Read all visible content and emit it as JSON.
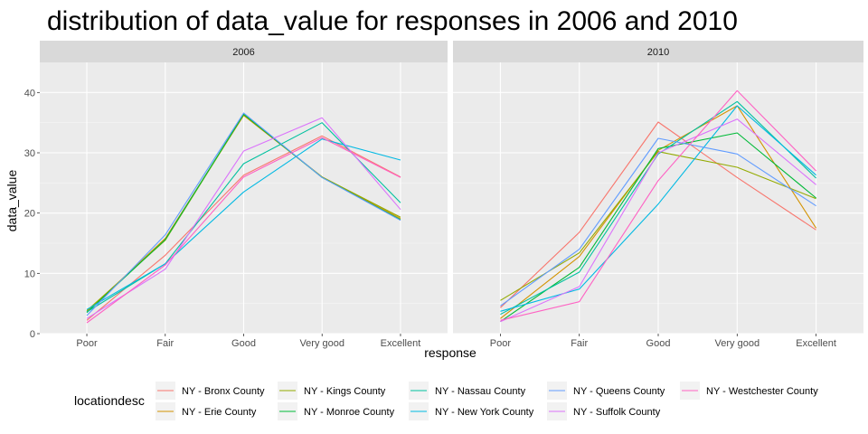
{
  "chart_data": {
    "type": "line",
    "title": "distribution of data_value for responses in 2006 and 2010",
    "xlabel": "response",
    "ylabel": "data_value",
    "categories": [
      "Poor",
      "Fair",
      "Good",
      "Very good",
      "Excellent"
    ],
    "ylim": [
      0,
      45
    ],
    "yticks": [
      0,
      10,
      20,
      30,
      40
    ],
    "grid": true,
    "legend": {
      "title": "locationdesc",
      "placement": "bottom"
    },
    "panels": [
      {
        "label": "2006",
        "series": [
          {
            "name": "NY - Bronx County",
            "color": "#F8766D",
            "values": [
              2.2,
              13.0,
              26.3,
              32.8,
              26.0
            ]
          },
          {
            "name": "NY - Erie County",
            "color": "#D39200",
            "values": [
              3.6,
              15.8,
              36.2,
              26.0,
              19.1
            ]
          },
          {
            "name": "NY - Kings County",
            "color": "#93AA00",
            "values": [
              3.8,
              15.5,
              36.3,
              26.0,
              19.3
            ]
          },
          {
            "name": "NY - Monroe County",
            "color": "#00BA38",
            "values": [
              3.5,
              15.6,
              36.4,
              25.9,
              18.9
            ]
          },
          {
            "name": "NY - Nassau County",
            "color": "#00C19F",
            "values": [
              3.6,
              11.6,
              28.2,
              35.0,
              21.7
            ]
          },
          {
            "name": "NY - New York County",
            "color": "#00B9E3",
            "values": [
              4.0,
              11.6,
              23.5,
              32.3,
              28.8
            ]
          },
          {
            "name": "NY - Queens County",
            "color": "#619CFF",
            "values": [
              3.0,
              16.4,
              36.6,
              25.9,
              18.8
            ]
          },
          {
            "name": "NY - Suffolk County",
            "color": "#DB72FB",
            "values": [
              2.5,
              10.7,
              30.3,
              35.8,
              20.6
            ]
          },
          {
            "name": "NY - Westchester County",
            "color": "#FF61C3",
            "values": [
              1.8,
              11.4,
              26.0,
              32.5,
              25.9
            ]
          }
        ]
      },
      {
        "label": "2010",
        "series": [
          {
            "name": "NY - Bronx County",
            "color": "#F8766D",
            "values": [
              4.3,
              16.8,
              35.1,
              25.9,
              17.2
            ]
          },
          {
            "name": "NY - Erie County",
            "color": "#D39200",
            "values": [
              2.5,
              12.8,
              30.4,
              37.8,
              17.5
            ]
          },
          {
            "name": "NY - Kings County",
            "color": "#93AA00",
            "values": [
              5.5,
              13.4,
              30.2,
              27.6,
              22.4
            ]
          },
          {
            "name": "NY - Monroe County",
            "color": "#00BA38",
            "values": [
              2.0,
              11.0,
              30.7,
              33.3,
              22.5
            ]
          },
          {
            "name": "NY - Nassau County",
            "color": "#00C19F",
            "values": [
              3.2,
              10.2,
              29.8,
              38.5,
              25.8
            ]
          },
          {
            "name": "NY - New York County",
            "color": "#00B9E3",
            "values": [
              3.7,
              7.4,
              21.5,
              37.8,
              26.3
            ]
          },
          {
            "name": "NY - Queens County",
            "color": "#619CFF",
            "values": [
              4.6,
              14.0,
              32.4,
              29.8,
              21.2
            ]
          },
          {
            "name": "NY - Suffolk County",
            "color": "#DB72FB",
            "values": [
              2.0,
              7.8,
              30.0,
              35.6,
              24.7
            ]
          },
          {
            "name": "NY - Westchester County",
            "color": "#FF61C3",
            "values": [
              2.2,
              5.3,
              25.4,
              40.3,
              27.0
            ]
          }
        ]
      }
    ]
  }
}
